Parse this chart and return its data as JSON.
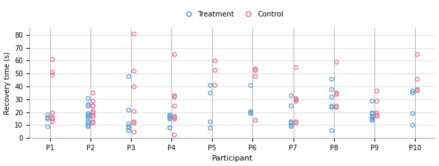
{
  "title": "",
  "xlabel": "Participant",
  "ylabel": "Recovery time (s)",
  "ylim": [
    0,
    85
  ],
  "yticks": [
    0,
    10,
    20,
    30,
    40,
    50,
    60,
    70,
    80
  ],
  "participants": [
    "P1",
    "P2",
    "P3",
    "P4",
    "P5",
    "P6",
    "P7",
    "P8",
    "P9",
    "P10"
  ],
  "treatment_color": "#5ba3d9",
  "control_color": "#e8729a",
  "legend_label_treatment": "Treatment",
  "legend_label_control": "Control",
  "treatment_data": {
    "P1": [
      9,
      15,
      16,
      18
    ],
    "P2": [
      9,
      10,
      12,
      13,
      16,
      17,
      18,
      19,
      25,
      26,
      31
    ],
    "P3": [
      6,
      8,
      9,
      11,
      22,
      48
    ],
    "P4": [
      8,
      8,
      15,
      16,
      17,
      17,
      18
    ],
    "P5": [
      8,
      13,
      35,
      41
    ],
    "P6": [
      19,
      20,
      21,
      41
    ],
    "P7": [
      9,
      10,
      12,
      13,
      25,
      33
    ],
    "P8": [
      6,
      24,
      25,
      32,
      38,
      46
    ],
    "P9": [
      14,
      15,
      16,
      17,
      19,
      20,
      29
    ],
    "P10": [
      10,
      19,
      35,
      37
    ]
  },
  "control_data": {
    "P1": [
      13,
      15,
      16,
      20,
      49,
      51,
      61
    ],
    "P2": [
      12,
      13,
      17,
      18,
      20,
      21,
      25,
      25,
      29,
      35
    ],
    "P3": [
      5,
      12,
      13,
      21,
      40,
      52,
      81
    ],
    "P4": [
      3,
      15,
      16,
      17,
      25,
      32,
      33,
      65
    ],
    "P5": [
      41,
      53,
      60
    ],
    "P6": [
      14,
      48,
      53,
      54
    ],
    "P7": [
      12,
      13,
      29,
      30,
      31,
      55
    ],
    "P8": [
      24,
      25,
      34,
      35,
      59
    ],
    "P9": [
      17,
      18,
      20,
      29,
      37
    ],
    "P10": [
      37,
      38,
      46,
      65
    ]
  },
  "background_color": "#ffffff",
  "vgrid_color": "#b0b0b0",
  "hgrid_color": "#d0d0d0",
  "spine_color": "#aaaaaa",
  "jitter_t": -0.06,
  "jitter_c": 0.06,
  "markersize": 4,
  "markeredgewidth": 1.0
}
